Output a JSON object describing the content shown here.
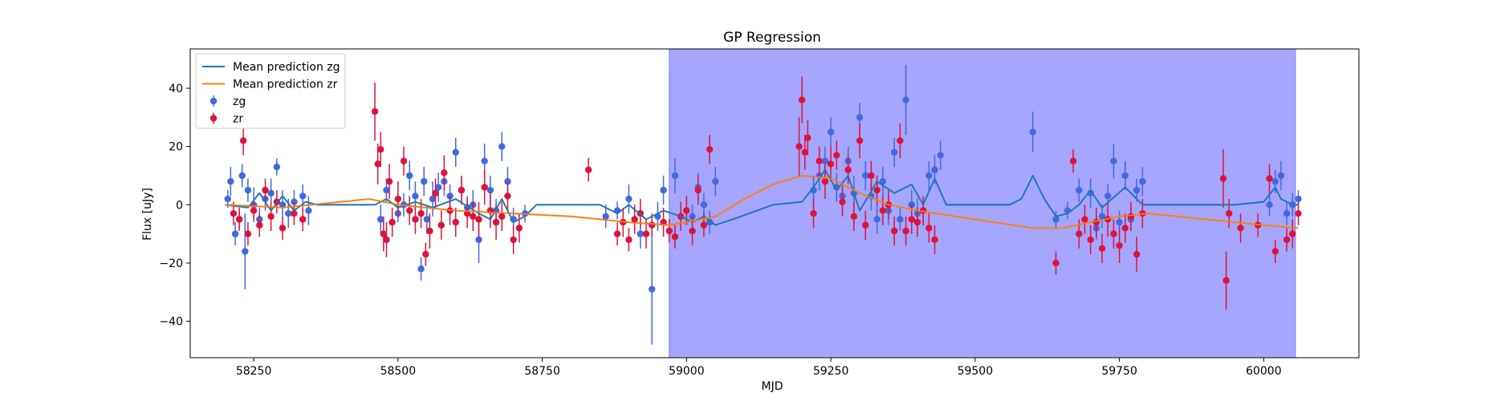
{
  "chart_data": {
    "type": "scatter",
    "title": "GP Regression",
    "xlabel": "MJD",
    "ylabel": "Flux [uJy]",
    "xlim": [
      58140,
      60165
    ],
    "ylim": [
      -52.5,
      53.5
    ],
    "xticks": [
      58250,
      58500,
      58750,
      59000,
      59250,
      59500,
      59750,
      60000
    ],
    "yticks": [
      -40,
      -20,
      0,
      20,
      40
    ],
    "grid": false,
    "legend_position": "top-left",
    "shaded_region": {
      "x": [
        58970,
        60055
      ],
      "color": "#a6a6ff"
    },
    "legend": [
      {
        "label": "Mean prediction zg",
        "kind": "line",
        "color": "#1f77b4"
      },
      {
        "label": "Mean prediction zr",
        "kind": "line",
        "color": "#ff7f0e"
      },
      {
        "label": "zg",
        "kind": "errorbar",
        "color": "#4169e1"
      },
      {
        "label": "zr",
        "kind": "errorbar",
        "color": "#dc143c"
      }
    ],
    "series": [
      {
        "name": "Mean prediction zg",
        "kind": "line",
        "color": "#1f77b4",
        "x": [
          58200,
          58240,
          58260,
          58280,
          58300,
          58320,
          58340,
          58360,
          58400,
          58460,
          58480,
          58500,
          58530,
          58560,
          58600,
          58640,
          58660,
          58680,
          58700,
          58720,
          58740,
          58800,
          58850,
          58880,
          58900,
          58930,
          58960,
          58990,
          59010,
          59030,
          59050,
          59080,
          59150,
          59200,
          59220,
          59240,
          59260,
          59280,
          59300,
          59330,
          59360,
          59390,
          59410,
          59430,
          59450,
          59500,
          59560,
          59580,
          59600,
          59620,
          59640,
          59660,
          59680,
          59700,
          59720,
          59760,
          59790,
          59800,
          59850,
          59900,
          59950,
          60000,
          60020,
          60030,
          60050,
          60060
        ],
        "y": [
          0,
          -1,
          4,
          -2,
          3,
          -2,
          1,
          0,
          0,
          0,
          2,
          -1,
          1,
          -1,
          2,
          -3,
          -5,
          2,
          -6,
          -4,
          0,
          0,
          0,
          -3,
          0,
          -5,
          -2,
          -4,
          -6,
          -4,
          -7,
          -5,
          0,
          1,
          6,
          12,
          5,
          10,
          -2,
          8,
          4,
          7,
          0,
          9,
          0,
          0,
          0,
          2,
          10,
          2,
          -4,
          -3,
          0,
          5,
          -1,
          6,
          0,
          0,
          0,
          0,
          0,
          1,
          6,
          2,
          0,
          0
        ]
      },
      {
        "name": "Mean prediction zr",
        "kind": "line",
        "color": "#ff7f0e",
        "x": [
          58200,
          58300,
          58400,
          58450,
          58500,
          58600,
          58700,
          58800,
          58900,
          58970,
          59000,
          59050,
          59100,
          59150,
          59200,
          59250,
          59300,
          59350,
          59400,
          59500,
          59600,
          59650,
          59700,
          59750,
          59800,
          59850,
          59900,
          59950,
          60000,
          60060
        ],
        "y": [
          0,
          -1,
          1,
          2,
          0,
          -2,
          -3,
          -4,
          -6,
          -7,
          -6,
          -4,
          2,
          7,
          10,
          9,
          4,
          0,
          -2,
          -5,
          -8,
          -8,
          -6,
          -4,
          -3,
          -4,
          -5,
          -6,
          -7,
          -8
        ]
      },
      {
        "name": "zg",
        "kind": "errorbar",
        "color": "#4169e1",
        "x": [
          58205,
          58210,
          58218,
          58225,
          58230,
          58235,
          58240,
          58250,
          58260,
          58270,
          58280,
          58290,
          58300,
          58310,
          58320,
          58335,
          58345,
          58470,
          58480,
          58500,
          58510,
          58520,
          58530,
          58540,
          58545,
          58550,
          58560,
          58570,
          58580,
          58590,
          58600,
          58610,
          58620,
          58630,
          58640,
          58650,
          58660,
          58670,
          58680,
          58690,
          58700,
          58720,
          58860,
          58880,
          58900,
          58920,
          58940,
          58950,
          58960,
          58980,
          59000,
          59010,
          59020,
          59030,
          59040,
          59050,
          59220,
          59230,
          59240,
          59250,
          59260,
          59270,
          59280,
          59290,
          59300,
          59310,
          59320,
          59330,
          59340,
          59350,
          59360,
          59370,
          59380,
          59390,
          59400,
          59410,
          59420,
          59430,
          59440,
          59600,
          59640,
          59660,
          59680,
          59700,
          59710,
          59720,
          59730,
          59740,
          59750,
          59760,
          59770,
          59780,
          59790,
          60010,
          60020,
          60030,
          60040,
          60050,
          60060
        ],
        "y": [
          2,
          8,
          -10,
          -5,
          10,
          -16,
          5,
          0,
          -5,
          2,
          4,
          13,
          0,
          -3,
          1,
          3,
          -2,
          -5,
          5,
          -3,
          0,
          10,
          3,
          -22,
          8,
          -5,
          2,
          6,
          8,
          3,
          18,
          5,
          -1,
          0,
          -12,
          15,
          5,
          -2,
          20,
          8,
          -5,
          -3,
          -4,
          -2,
          2,
          -10,
          -29,
          -4,
          5,
          10,
          -2,
          -4,
          6,
          0,
          -6,
          8,
          5,
          10,
          15,
          25,
          6,
          3,
          15,
          4,
          30,
          10,
          3,
          -5,
          8,
          -2,
          18,
          -5,
          36,
          0,
          -3,
          -2,
          10,
          12,
          17,
          25,
          -5,
          -2,
          5,
          4,
          -8,
          -4,
          3,
          15,
          -6,
          10,
          -5,
          5,
          8,
          0,
          8,
          10,
          -3,
          0,
          2
        ],
        "err": [
          3,
          5,
          4,
          3,
          4,
          13,
          4,
          6,
          4,
          4,
          5,
          3,
          5,
          5,
          4,
          4,
          5,
          5,
          4,
          3,
          4,
          5,
          5,
          4,
          5,
          5,
          6,
          5,
          5,
          4,
          5,
          4,
          4,
          5,
          8,
          6,
          5,
          4,
          5,
          5,
          4,
          3,
          4,
          3,
          5,
          5,
          19,
          5,
          5,
          6,
          4,
          4,
          5,
          4,
          4,
          5,
          5,
          5,
          5,
          5,
          5,
          5,
          5,
          6,
          5,
          5,
          5,
          5,
          5,
          5,
          5,
          4,
          12,
          5,
          5,
          5,
          5,
          5,
          5,
          7,
          3,
          3,
          4,
          5,
          4,
          4,
          4,
          6,
          4,
          5,
          4,
          4,
          5,
          4,
          4,
          5,
          4,
          4,
          3
        ]
      },
      {
        "name": "zr",
        "kind": "errorbar",
        "color": "#dc143c",
        "x": [
          58215,
          58225,
          58232,
          58240,
          58250,
          58260,
          58270,
          58280,
          58290,
          58300,
          58320,
          58335,
          58460,
          58465,
          58470,
          58475,
          58480,
          58485,
          58490,
          58500,
          58510,
          58520,
          58530,
          58540,
          58548,
          58555,
          58565,
          58575,
          58580,
          58590,
          58600,
          58610,
          58620,
          58630,
          58640,
          58650,
          58660,
          58670,
          58680,
          58690,
          58700,
          58710,
          58830,
          58880,
          58890,
          58900,
          58910,
          58920,
          58930,
          58940,
          58960,
          58970,
          58980,
          58990,
          59000,
          59010,
          59020,
          59030,
          59040,
          59195,
          59200,
          59205,
          59210,
          59220,
          59230,
          59240,
          59250,
          59260,
          59270,
          59280,
          59290,
          59300,
          59310,
          59320,
          59330,
          59340,
          59350,
          59360,
          59370,
          59380,
          59390,
          59400,
          59410,
          59420,
          59430,
          59640,
          59670,
          59680,
          59690,
          59700,
          59710,
          59720,
          59730,
          59740,
          59750,
          59760,
          59770,
          59780,
          59790,
          59930,
          59935,
          59940,
          59960,
          59990,
          60010,
          60020,
          60040,
          60050,
          60060
        ],
        "y": [
          -3,
          -5,
          22,
          -10,
          -2,
          -7,
          5,
          -4,
          1,
          -8,
          -3,
          -5,
          32,
          14,
          19,
          -10,
          -12,
          8,
          -6,
          2,
          15,
          -2,
          -5,
          -3,
          -17,
          -9,
          4,
          -7,
          11,
          -2,
          -6,
          5,
          -3,
          -4,
          -5,
          6,
          -2,
          -6,
          -4,
          3,
          -12,
          -8,
          12,
          -10,
          -6,
          -12,
          -5,
          -3,
          -10,
          -7,
          -6,
          -9,
          -11,
          -4,
          -2,
          -9,
          5,
          -7,
          19,
          20,
          36,
          18,
          23,
          -3,
          15,
          8,
          14,
          17,
          1,
          12,
          -4,
          22,
          -7,
          10,
          5,
          -2,
          0,
          -9,
          22,
          -9,
          -5,
          -6,
          -2,
          -8,
          -12,
          -20,
          15,
          -10,
          -5,
          -12,
          -6,
          -15,
          -5,
          -10,
          -14,
          -8,
          -4,
          -17,
          -3,
          9,
          -26,
          -3,
          -8,
          -7,
          9,
          -16,
          -12,
          -10,
          -3
        ],
        "err": [
          4,
          4,
          5,
          4,
          3,
          4,
          4,
          5,
          4,
          4,
          4,
          4,
          10,
          7,
          6,
          6,
          6,
          6,
          5,
          6,
          5,
          5,
          5,
          5,
          4,
          6,
          5,
          5,
          6,
          5,
          5,
          5,
          5,
          5,
          6,
          6,
          6,
          6,
          5,
          5,
          5,
          5,
          4,
          4,
          5,
          4,
          5,
          5,
          5,
          4,
          5,
          4,
          4,
          5,
          5,
          5,
          5,
          4,
          5,
          10,
          8,
          6,
          6,
          5,
          5,
          6,
          6,
          5,
          5,
          5,
          5,
          6,
          5,
          5,
          5,
          5,
          5,
          5,
          6,
          5,
          5,
          5,
          5,
          5,
          5,
          4,
          4,
          5,
          5,
          5,
          5,
          5,
          6,
          5,
          6,
          5,
          5,
          6,
          5,
          10,
          10,
          5,
          5,
          4,
          5,
          4,
          4,
          5,
          4
        ]
      }
    ]
  }
}
